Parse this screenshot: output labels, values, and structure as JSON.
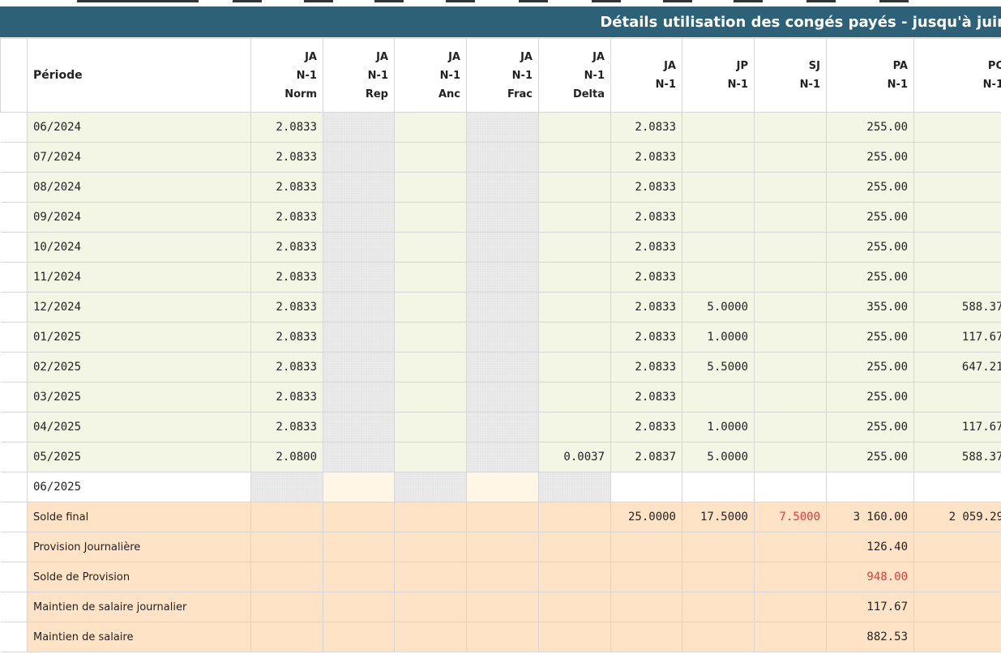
{
  "title": "Détails utilisation des congés payés - jusqu'à juin",
  "columns": [
    {
      "l1": "Période"
    },
    {
      "l1": "JA",
      "l2": "N-1",
      "l3": "Norm"
    },
    {
      "l1": "JA",
      "l2": "N-1",
      "l3": "Rep"
    },
    {
      "l1": "JA",
      "l2": "N-1",
      "l3": "Anc"
    },
    {
      "l1": "JA",
      "l2": "N-1",
      "l3": "Frac"
    },
    {
      "l1": "JA",
      "l2": "N-1",
      "l3": "Delta"
    },
    {
      "l1": "JA",
      "l2": "N-1"
    },
    {
      "l1": "JP",
      "l2": "N-1"
    },
    {
      "l1": "SJ",
      "l2": "N-1"
    },
    {
      "l1": "PA",
      "l2": "N-1"
    },
    {
      "l1": "PC",
      "l2": "N-1"
    }
  ],
  "rows": [
    {
      "p": "06/2024",
      "norm": "2.0833",
      "delta": "",
      "ja": "2.0833",
      "jp": "",
      "sj": "",
      "pa": "255.00",
      "pc": ""
    },
    {
      "p": "07/2024",
      "norm": "2.0833",
      "delta": "",
      "ja": "2.0833",
      "jp": "",
      "sj": "",
      "pa": "255.00",
      "pc": ""
    },
    {
      "p": "08/2024",
      "norm": "2.0833",
      "delta": "",
      "ja": "2.0833",
      "jp": "",
      "sj": "",
      "pa": "255.00",
      "pc": ""
    },
    {
      "p": "09/2024",
      "norm": "2.0833",
      "delta": "",
      "ja": "2.0833",
      "jp": "",
      "sj": "",
      "pa": "255.00",
      "pc": ""
    },
    {
      "p": "10/2024",
      "norm": "2.0833",
      "delta": "",
      "ja": "2.0833",
      "jp": "",
      "sj": "",
      "pa": "255.00",
      "pc": ""
    },
    {
      "p": "11/2024",
      "norm": "2.0833",
      "delta": "",
      "ja": "2.0833",
      "jp": "",
      "sj": "",
      "pa": "255.00",
      "pc": ""
    },
    {
      "p": "12/2024",
      "norm": "2.0833",
      "delta": "",
      "ja": "2.0833",
      "jp": "5.0000",
      "sj": "",
      "pa": "355.00",
      "pc": "588.37"
    },
    {
      "p": "01/2025",
      "norm": "2.0833",
      "delta": "",
      "ja": "2.0833",
      "jp": "1.0000",
      "sj": "",
      "pa": "255.00",
      "pc": "117.67"
    },
    {
      "p": "02/2025",
      "norm": "2.0833",
      "delta": "",
      "ja": "2.0833",
      "jp": "5.5000",
      "sj": "",
      "pa": "255.00",
      "pc": "647.21"
    },
    {
      "p": "03/2025",
      "norm": "2.0833",
      "delta": "",
      "ja": "2.0833",
      "jp": "",
      "sj": "",
      "pa": "255.00",
      "pc": ""
    },
    {
      "p": "04/2025",
      "norm": "2.0833",
      "delta": "",
      "ja": "2.0833",
      "jp": "1.0000",
      "sj": "",
      "pa": "255.00",
      "pc": "117.67"
    },
    {
      "p": "05/2025",
      "norm": "2.0800",
      "delta": "0.0037",
      "ja": "2.0837",
      "jp": "5.0000",
      "sj": "",
      "pa": "255.00",
      "pc": "588.37"
    }
  ],
  "current_row": {
    "p": "06/2025"
  },
  "summary": [
    {
      "label": "Solde final",
      "ja": "25.0000",
      "jp": "17.5000",
      "sj": "7.5000",
      "pa": "3 160.00",
      "pc": "2 059.29"
    },
    {
      "label": "Provision Journalière",
      "pa": "126.40"
    },
    {
      "label": "Solde de Provision",
      "pa": "948.00"
    },
    {
      "label": "Maintien de salaire journalier",
      "pa": "117.67"
    },
    {
      "label": "Maintien de salaire",
      "pa": "882.53"
    }
  ],
  "colors": {
    "header_bg": "#2c6178",
    "row_bg": "#f3f6e4",
    "summary_bg": "#ffe3c6",
    "negative": "#e23b3b"
  }
}
